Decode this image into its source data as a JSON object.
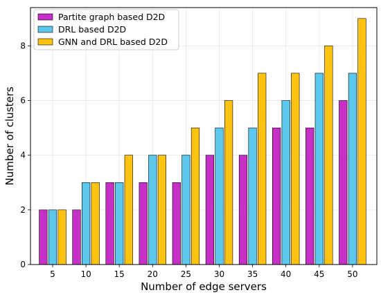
{
  "chart_data": {
    "type": "bar",
    "title": "",
    "xlabel": "Number of edge servers",
    "ylabel": "Number of  clusters",
    "categories": [
      "5",
      "10",
      "15",
      "20",
      "25",
      "30",
      "35",
      "40",
      "45",
      "50"
    ],
    "ylim": [
      0,
      9.4
    ],
    "yticks": [
      "0",
      "2",
      "4",
      "6",
      "8"
    ],
    "grid": true,
    "legend_position": "top-left",
    "series": [
      {
        "name": "Partite graph based D2D",
        "color": "#c630c6",
        "values": [
          2,
          2,
          3,
          3,
          3,
          4,
          4,
          5,
          5,
          6
        ]
      },
      {
        "name": "DRL based D2D",
        "color": "#5bc8ec",
        "values": [
          2,
          3,
          3,
          4,
          4,
          5,
          5,
          6,
          7,
          7
        ]
      },
      {
        "name": "GNN and DRL based D2D",
        "color": "#fdc310",
        "values": [
          2,
          3,
          4,
          4,
          5,
          6,
          7,
          7,
          8,
          9
        ]
      }
    ]
  }
}
